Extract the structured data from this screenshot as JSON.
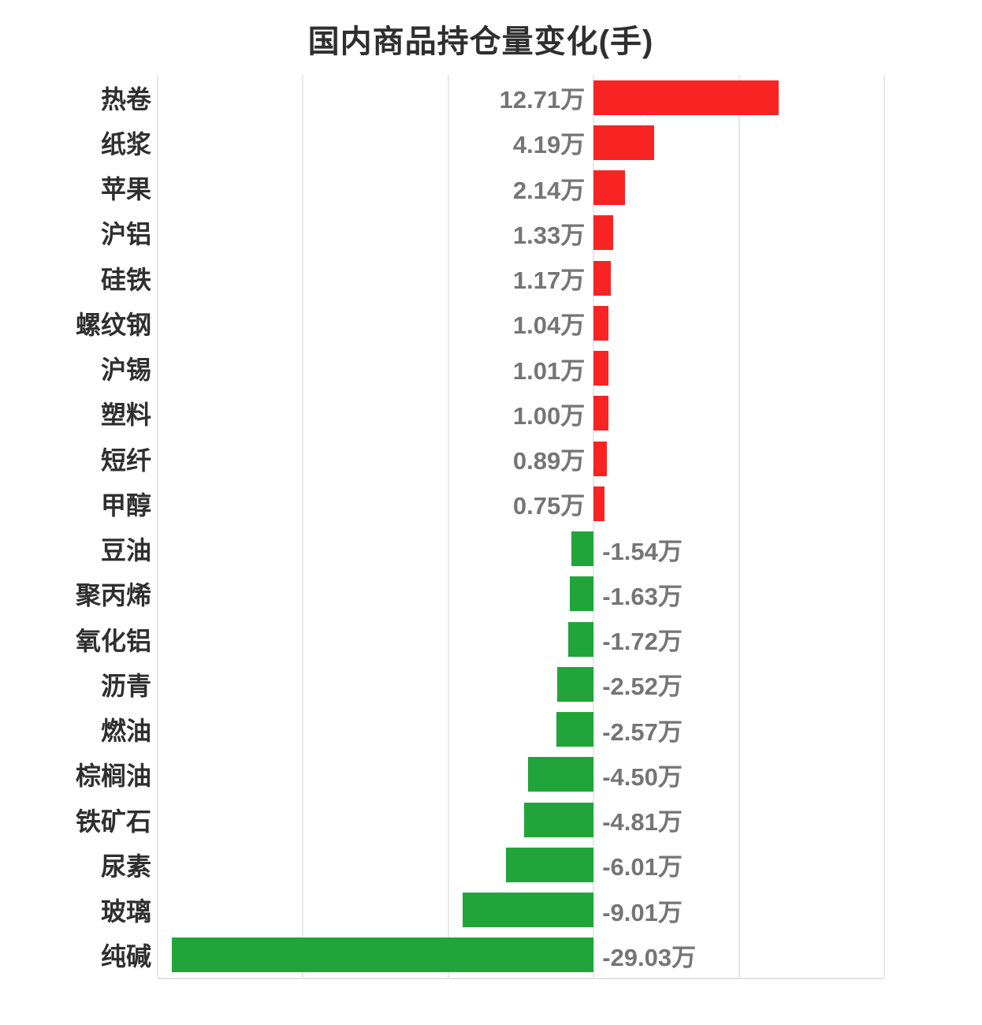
{
  "chart_data": {
    "type": "bar",
    "orientation": "horizontal",
    "title": "国内商品持仓量变化(手)",
    "unit": "万",
    "categories": [
      "热卷",
      "纸浆",
      "苹果",
      "沪铝",
      "硅铁",
      "螺纹钢",
      "沪锡",
      "塑料",
      "短纤",
      "甲醇",
      "豆油",
      "聚丙烯",
      "氧化铝",
      "沥青",
      "燃油",
      "棕榈油",
      "铁矿石",
      "尿素",
      "玻璃",
      "纯碱"
    ],
    "values": [
      12.71,
      4.19,
      2.14,
      1.33,
      1.17,
      1.04,
      1.01,
      1.0,
      0.89,
      0.75,
      -1.54,
      -1.63,
      -1.72,
      -2.52,
      -2.57,
      -4.5,
      -4.81,
      -6.01,
      -9.01,
      -29.03
    ],
    "value_labels": [
      "12.71万",
      "4.19万",
      "2.14万",
      "1.33万",
      "1.17万",
      "1.04万",
      "1.01万",
      "1.00万",
      "0.89万",
      "0.75万",
      "-1.54万",
      "-1.63万",
      "-1.72万",
      "-2.52万",
      "-2.57万",
      "-4.50万",
      "-4.81万",
      "-6.01万",
      "-9.01万",
      "-29.03万"
    ],
    "xlim": [
      -30,
      20
    ],
    "grid_step": 10,
    "grid": true,
    "legend": false,
    "axis_tick_labels_visible": false,
    "colors": {
      "positive": "#f82424",
      "negative": "#21a53a",
      "title": "#2f2f2f",
      "category_label": "#2f2f2f",
      "value_label": "#757575",
      "gridline": "#e9e9e9",
      "axis_line": "#e3e3e3",
      "background": "#ffffff"
    }
  }
}
